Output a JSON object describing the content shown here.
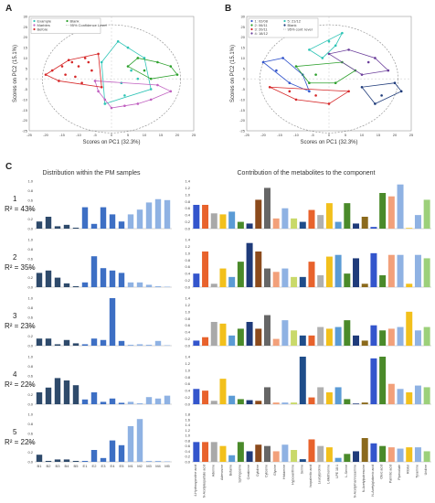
{
  "chart_data": [
    {
      "panel": "A",
      "type": "scatter",
      "xlabel": "Scores on PC1 (32.3%)",
      "ylabel": "Scores on PC2 (15.1%)",
      "xlim": [
        -25,
        25
      ],
      "ylim": [
        -25,
        30
      ],
      "xticks": [
        "-25",
        "-20",
        "-15",
        "-10",
        "-5",
        "0",
        "5",
        "10",
        "15",
        "20",
        "25"
      ],
      "yticks": [
        "30",
        "25",
        "20",
        "15",
        "10",
        "5",
        "0",
        "-5",
        "-10",
        "-15",
        "-20",
        "-25"
      ],
      "legend": [
        "Example",
        "Marbles",
        "Before",
        "Blank",
        "95% Confidence Level"
      ],
      "legend_position": "top-left",
      "series": [
        {
          "name": "Example",
          "color": "#2ec4b6",
          "points": [
            [
              2,
              18
            ],
            [
              5,
              15
            ],
            [
              10,
              10
            ],
            [
              -3,
              8
            ],
            [
              3,
              -2
            ],
            [
              8,
              0
            ],
            [
              12,
              -5
            ],
            [
              -2,
              -12
            ],
            [
              4,
              -8
            ],
            [
              6,
              4
            ]
          ]
        },
        {
          "name": "Marbles",
          "color": "#c060c0",
          "points": [
            [
              -4,
              -6
            ],
            [
              -2,
              -10
            ],
            [
              0,
              -14
            ],
            [
              8,
              -12
            ],
            [
              12,
              -10
            ],
            [
              18,
              -6
            ],
            [
              4,
              -13
            ],
            [
              -5,
              -1
            ],
            [
              14,
              -3
            ]
          ]
        },
        {
          "name": "Before",
          "color": "#d62728",
          "points": [
            [
              -20,
              2
            ],
            [
              -18,
              4
            ],
            [
              -15,
              6
            ],
            [
              -12,
              8
            ],
            [
              -8,
              10
            ],
            [
              -14,
              2
            ],
            [
              -10,
              6
            ],
            [
              -6,
              4
            ],
            [
              -16,
              -1
            ],
            [
              -4,
              12
            ],
            [
              -11,
              1
            ],
            [
              -9,
              -2
            ],
            [
              -3,
              -4
            ],
            [
              -7,
              8
            ],
            [
              -13,
              9
            ]
          ]
        },
        {
          "name": "Blank",
          "color": "#2ca02c",
          "points": [
            [
              5,
              6
            ],
            [
              10,
              4
            ],
            [
              14,
              8
            ],
            [
              18,
              6
            ],
            [
              8,
              10
            ],
            [
              20,
              2
            ],
            [
              12,
              0
            ]
          ]
        }
      ]
    },
    {
      "panel": "B",
      "type": "scatter",
      "xlabel": "Scores on PC1 (32.3%)",
      "ylabel": "Scores on PC2 (15.1%)",
      "xlim": [
        -25,
        25
      ],
      "ylim": [
        -25,
        30
      ],
      "xticks": [
        "-25",
        "-20",
        "-15",
        "-10",
        "-5",
        "0",
        "5",
        "10",
        "15",
        "20",
        "25"
      ],
      "yticks": [
        "30",
        "25",
        "20",
        "15",
        "10",
        "5",
        "0",
        "-5",
        "-10",
        "-15",
        "-20",
        "-25"
      ],
      "legend": [
        "1: 02/08",
        "2: 06/11",
        "3: 20/11",
        "4: 18/12",
        "5: 21/12",
        "Blank",
        "95% conf. level"
      ],
      "legend_position": "top-left",
      "series": [
        {
          "name": "1: 02/08",
          "color": "#3355cc",
          "points": [
            [
              -20,
              8
            ],
            [
              -16,
              4
            ],
            [
              -12,
              -2
            ],
            [
              -6,
              -6
            ],
            [
              -14,
              10
            ],
            [
              -8,
              2
            ]
          ]
        },
        {
          "name": "2: 06/11",
          "color": "#2ca02c",
          "points": [
            [
              -10,
              6
            ],
            [
              -4,
              2
            ],
            [
              2,
              -2
            ],
            [
              8,
              4
            ],
            [
              -6,
              -2
            ],
            [
              4,
              8
            ]
          ]
        },
        {
          "name": "3: 20/11",
          "color": "#d62728",
          "points": [
            [
              -18,
              -4
            ],
            [
              -10,
              -10
            ],
            [
              -4,
              -8
            ],
            [
              0,
              -12
            ],
            [
              6,
              -6
            ],
            [
              -12,
              -6
            ]
          ]
        },
        {
          "name": "4: 18/12",
          "color": "#6a3d9a",
          "points": [
            [
              0,
              12
            ],
            [
              6,
              14
            ],
            [
              14,
              10
            ],
            [
              10,
              2
            ],
            [
              18,
              4
            ],
            [
              12,
              8
            ]
          ]
        },
        {
          "name": "5: 21/12",
          "color": "#2ec4b6",
          "points": [
            [
              -6,
              14
            ],
            [
              0,
              18
            ],
            [
              4,
              22
            ],
            [
              -2,
              10
            ],
            [
              2,
              16
            ]
          ]
        },
        {
          "name": "Blank",
          "color": "#1f3b7a",
          "points": [
            [
              10,
              -4
            ],
            [
              16,
              -8
            ],
            [
              20,
              -2
            ],
            [
              14,
              -12
            ],
            [
              22,
              -6
            ]
          ]
        }
      ]
    },
    {
      "panel": "C",
      "type": "bar",
      "left_title": "Distribution within the PM samples",
      "right_title": "Contribution of the metabolites to the component",
      "sample_categories": [
        "B1",
        "B2",
        "B3",
        "B4",
        "B5",
        "E1",
        "E2",
        "E3",
        "E4",
        "E5",
        "M1",
        "M2",
        "M3",
        "M4",
        "M5"
      ],
      "sample_colors": [
        "#2e4a6b",
        "#2e4a6b",
        "#2e4a6b",
        "#2e4a6b",
        "#2e4a6b",
        "#3d6fc4",
        "#3d6fc4",
        "#3d6fc4",
        "#3d6fc4",
        "#3d6fc4",
        "#8fb2e3",
        "#8fb2e3",
        "#8fb2e3",
        "#8fb2e3",
        "#8fb2e3"
      ],
      "metabolites": [
        "4-Hydroxyproline acid",
        "N-Acetylaspartate acid",
        "Adenine",
        "Adenosine",
        "Betaine",
        "Sphingosine",
        "Creatinine",
        "Cytidine",
        "Cytosine",
        "Glycine",
        "Histamine",
        "Hypoxanthine",
        "Serine",
        "Isopalmitic acid",
        "Leucylproline",
        "L-Methionine",
        "LPE 18:1",
        "L-Serine",
        "N-Acetylmannosamine",
        "N-Acetylputrescine",
        "N-Acetylglutamic acid",
        "Oleic acid",
        "Palmitic acid",
        "Pipecolate",
        "Ribitol",
        "Tyramine",
        "Uridine"
      ],
      "metabolite_colors": [
        "#3355cc",
        "#e8622c",
        "#a9a9a9",
        "#f2c01c",
        "#5b9bd5",
        "#4a8a2a",
        "#1f3b7a",
        "#8b4a1c",
        "#666666",
        "#f2a07a",
        "#8fb2e3",
        "#c9d96a",
        "#1f4d8a",
        "#e8622c",
        "#b0b0b0",
        "#f2c01c",
        "#5b9bd5",
        "#4a8a2a",
        "#1f3b7a",
        "#8b6a1c",
        "#3355cc",
        "#4a8a2a",
        "#f2a07a",
        "#8fb2e3",
        "#f2c01c",
        "#8fb2e3",
        "#9cd07a"
      ],
      "components": [
        {
          "num": "1",
          "r2": "R² = 43%",
          "sample_yticks": [
            "1.0",
            "0.8",
            "0.6",
            "0.4",
            "0.2",
            "0.0"
          ],
          "sample_ylim": [
            0,
            1.0
          ],
          "sample_values": [
            0.15,
            0.25,
            0.05,
            0.08,
            0.02,
            0.45,
            0.1,
            0.45,
            0.3,
            0.15,
            0.3,
            0.4,
            0.55,
            0.62,
            0.6
          ],
          "metab_yticks": [
            "1.4",
            "1.2",
            "1.0",
            "0.8",
            "0.6",
            "0.4",
            "0.2",
            "0.0"
          ],
          "metab_ylim": [
            0,
            1.4
          ],
          "metab_values": [
            0.7,
            0.7,
            0.45,
            0.42,
            0.5,
            0.2,
            0.15,
            0.85,
            1.2,
            0.3,
            0.6,
            0.3,
            0.2,
            0.55,
            0.4,
            0.75,
            0.2,
            0.75,
            0.15,
            0.35,
            0.05,
            1.05,
            0.95,
            1.3,
            0.02,
            0.4,
            0.85
          ]
        },
        {
          "num": "2",
          "r2": "R² = 35%",
          "sample_yticks": [
            "1.0",
            "0.8",
            "0.6",
            "0.4",
            "0.2",
            "0.0"
          ],
          "sample_ylim": [
            0,
            1.0
          ],
          "sample_values": [
            0.3,
            0.35,
            0.2,
            0.08,
            0.02,
            0.1,
            0.65,
            0.4,
            0.35,
            0.3,
            0.1,
            0.1,
            0.05,
            0.02,
            0.01
          ],
          "metab_yticks": [
            "1.4",
            "1.2",
            "1.0",
            "0.8",
            "0.6",
            "0.4",
            "0.2",
            "0.0"
          ],
          "metab_ylim": [
            0,
            1.4
          ],
          "metab_values": [
            0.4,
            1.05,
            0.1,
            0.55,
            0.3,
            0.75,
            1.3,
            1.05,
            0.55,
            0.45,
            0.55,
            0.3,
            0.3,
            0.75,
            0.35,
            0.9,
            0.95,
            0.4,
            0.85,
            0.1,
            1.0,
            0.35,
            0.95,
            0.95,
            0.1,
            0.95,
            0.85
          ]
        },
        {
          "num": "3",
          "r2": "R² = 23%",
          "sample_yticks": [
            "1.0",
            "0.8",
            "0.6",
            "0.4",
            "0.2",
            "0.0"
          ],
          "sample_ylim": [
            0,
            1.0
          ],
          "sample_values": [
            0.15,
            0.15,
            0.03,
            0.12,
            0.05,
            0.03,
            0.15,
            0.12,
            1.0,
            0.1,
            0.02,
            0.03,
            0.02,
            0.1,
            0.01
          ],
          "metab_yticks": [
            "1.4",
            "1.2",
            "1.0",
            "0.8",
            "0.6",
            "0.4",
            "0.2",
            "0.0"
          ],
          "metab_ylim": [
            0,
            1.4
          ],
          "metab_values": [
            0.15,
            0.25,
            0.7,
            0.65,
            0.3,
            0.5,
            0.7,
            0.5,
            0.9,
            0.2,
            0.75,
            0.45,
            0.3,
            0.3,
            0.55,
            0.5,
            0.55,
            0.75,
            0.3,
            0.15,
            0.6,
            0.45,
            0.5,
            0.55,
            1.0,
            0.45,
            0.55
          ]
        },
        {
          "num": "4",
          "r2": "R² = 22%",
          "sample_yticks": [
            "1.0",
            "0.8",
            "0.6",
            "0.4",
            "0.2",
            "0.0"
          ],
          "sample_ylim": [
            0,
            1.0
          ],
          "sample_values": [
            0.25,
            0.35,
            0.55,
            0.5,
            0.4,
            0.1,
            0.25,
            0.05,
            0.12,
            0.03,
            0.05,
            0.02,
            0.15,
            0.12,
            0.18
          ],
          "metab_yticks": [
            "1.4",
            "1.2",
            "1.0",
            "0.8",
            "0.6",
            "0.4",
            "0.2",
            "0.0"
          ],
          "metab_ylim": [
            0,
            1.4
          ],
          "metab_values": [
            0.45,
            0.4,
            0.1,
            0.75,
            0.25,
            0.15,
            0.12,
            0.1,
            0.5,
            0.05,
            0.05,
            0.05,
            1.4,
            0.2,
            0.5,
            0.35,
            0.5,
            0.15,
            0.02,
            0.05,
            1.35,
            1.4,
            0.6,
            0.45,
            0.35,
            0.55,
            0.5
          ]
        },
        {
          "num": "5",
          "r2": "R² = 22%",
          "sample_yticks": [
            "1.0",
            "0.8",
            "0.6",
            "0.4",
            "0.2",
            "0.0"
          ],
          "sample_ylim": [
            0,
            1.0
          ],
          "sample_values": [
            0.15,
            0.02,
            0.05,
            0.05,
            0.02,
            0.02,
            0.25,
            0.08,
            0.45,
            0.35,
            0.75,
            0.9,
            0.02,
            0.02,
            0.01
          ],
          "metab_yticks": [
            "1.8",
            "1.6",
            "1.4",
            "1.2",
            "1.0",
            "0.8",
            "0.6",
            "0.4",
            "0.2",
            "0.0"
          ],
          "metab_ylim": [
            0,
            1.8
          ],
          "metab_values": [
            0.75,
            0.75,
            0.75,
            0.6,
            0.25,
            0.75,
            0.4,
            0.65,
            0.6,
            0.4,
            0.65,
            0.45,
            0.1,
            0.85,
            0.6,
            0.55,
            0.15,
            0.3,
            0.4,
            0.9,
            0.7,
            0.6,
            0.55,
            0.5,
            0.55,
            0.55,
            0.4
          ]
        }
      ]
    }
  ]
}
